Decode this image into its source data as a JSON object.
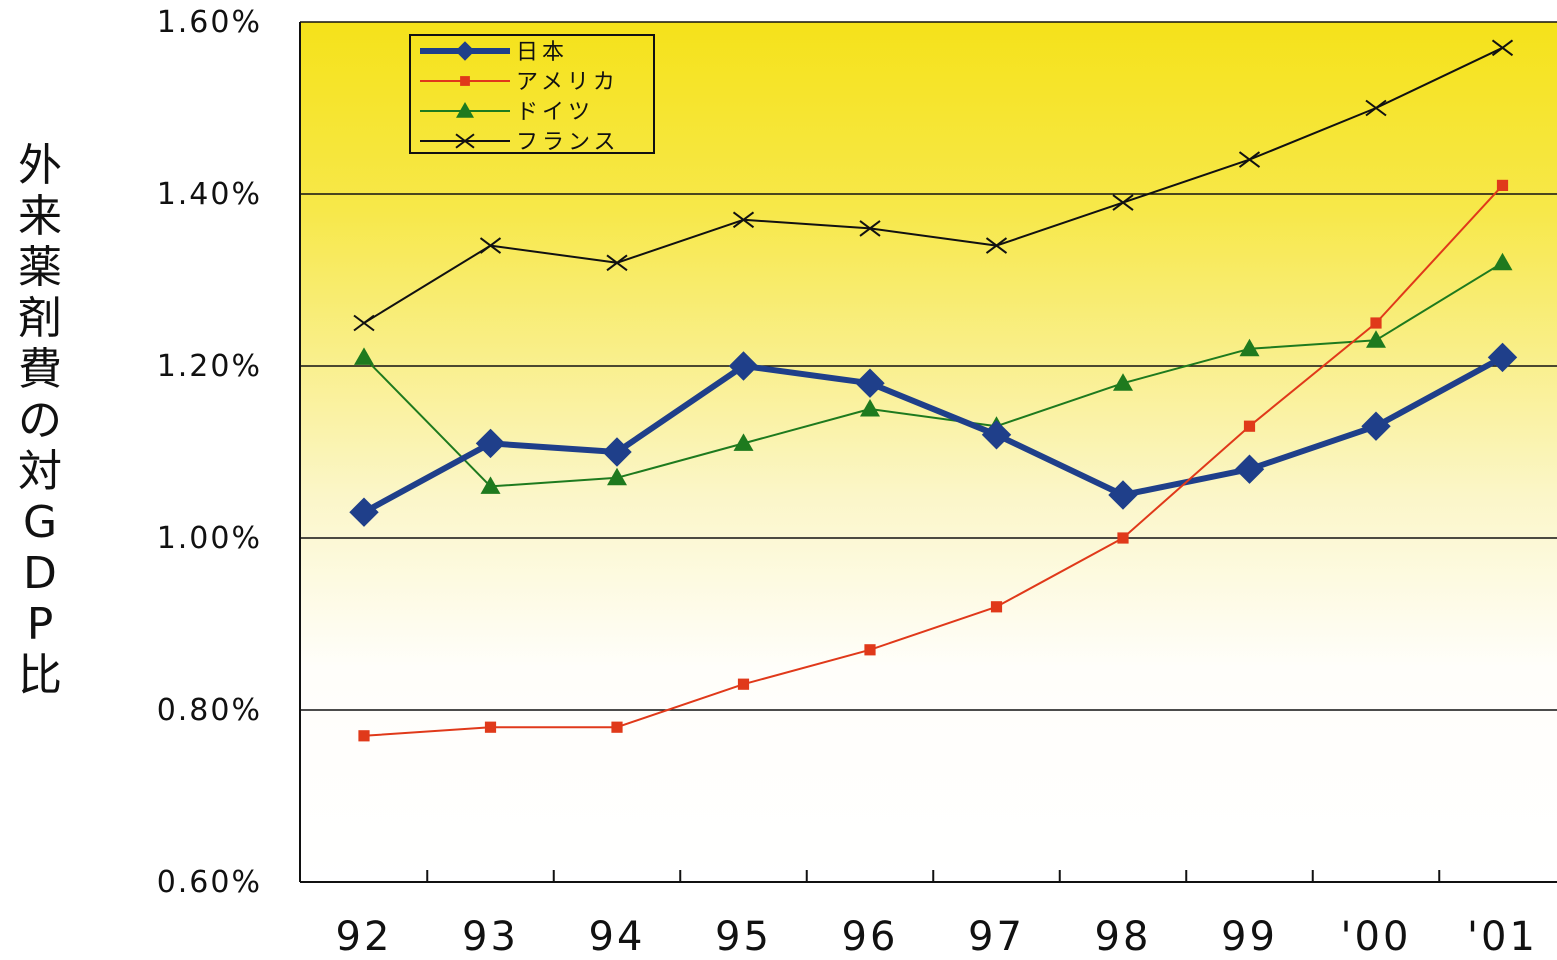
{
  "chart_data": {
    "type": "line",
    "ylabel": "外来薬剤費の対GDP比",
    "xlabel": "",
    "categories": [
      "92",
      "93",
      "94",
      "95",
      "96",
      "97",
      "98",
      "99",
      "'00",
      "'01"
    ],
    "ylim": [
      0.6,
      1.6
    ],
    "yticks": [
      "0.60%",
      "0.80%",
      "1.00%",
      "1.20%",
      "1.40%",
      "1.60%"
    ],
    "grid": "horizontal",
    "legend_position": "top-left",
    "background": "gradient yellow (top) to white (bottom)",
    "series": [
      {
        "name": "日本",
        "marker": "diamond",
        "color": "#1f3f8a",
        "values": [
          1.03,
          1.11,
          1.1,
          1.2,
          1.18,
          1.12,
          1.05,
          1.08,
          1.13,
          1.21
        ]
      },
      {
        "name": "アメリカ",
        "marker": "square",
        "color": "#e0391a",
        "values": [
          0.77,
          0.78,
          0.78,
          0.83,
          0.87,
          0.92,
          1.0,
          1.13,
          1.25,
          1.41
        ]
      },
      {
        "name": "ドイツ",
        "marker": "triangle",
        "color": "#1e7a1e",
        "values": [
          1.21,
          1.06,
          1.07,
          1.11,
          1.15,
          1.13,
          1.18,
          1.22,
          1.23,
          1.32
        ]
      },
      {
        "name": "フランス",
        "marker": "x",
        "color": "#111111",
        "values": [
          1.25,
          1.34,
          1.32,
          1.37,
          1.36,
          1.34,
          1.39,
          1.44,
          1.5,
          1.57
        ]
      }
    ]
  }
}
